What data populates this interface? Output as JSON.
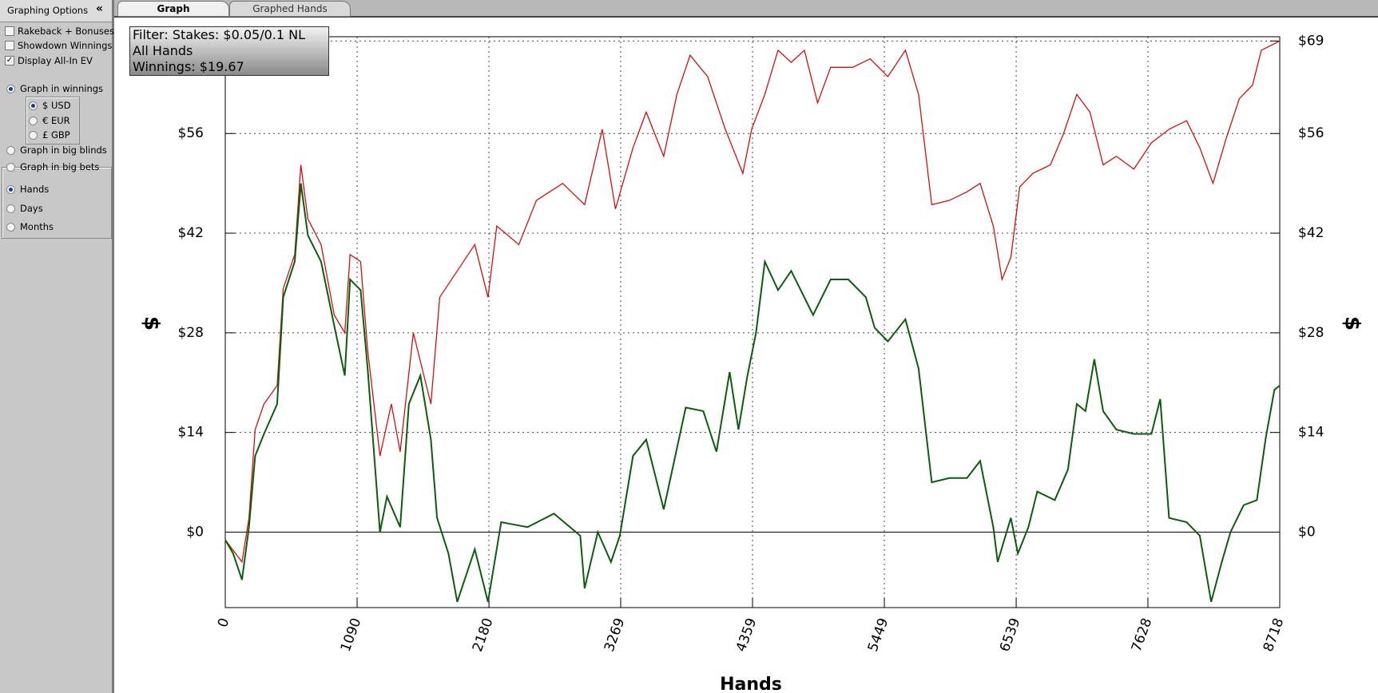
{
  "sidebar": {
    "title": "Graphing Options",
    "collapse": "«",
    "checkboxes": [
      {
        "label": "Rakeback + Bonuses",
        "checked": false
      },
      {
        "label": "Showdown Winnings",
        "checked": false
      },
      {
        "label": "Display All-In EV",
        "checked": true
      }
    ],
    "graph_modes": [
      {
        "label": "Graph in winnings",
        "checked": true
      },
      {
        "label": "Graph in big blinds",
        "checked": false
      },
      {
        "label": "Graph in big bets",
        "checked": false
      }
    ],
    "currencies": [
      {
        "label": "$ USD",
        "checked": true
      },
      {
        "label": "€ EUR",
        "checked": false
      },
      {
        "label": "£ GBP",
        "checked": false
      }
    ],
    "x_modes": [
      {
        "label": "Hands",
        "checked": true
      },
      {
        "label": "Days",
        "checked": false
      },
      {
        "label": "Months",
        "checked": false
      }
    ]
  },
  "tabs": [
    {
      "label": "Graph",
      "active": true
    },
    {
      "label": "Graphed Hands",
      "active": false
    }
  ],
  "filter_box": [
    "Filter: Stakes: $0.05/0.1 NL",
    "All Hands",
    "Winnings: $19.67"
  ],
  "chart_data": {
    "type": "line",
    "x_label": "Hands",
    "y_label": "$",
    "grid": true,
    "xlim": [
      0,
      8718
    ],
    "xticks": [
      0,
      1090,
      2180,
      3269,
      4359,
      5449,
      6539,
      7628,
      8718
    ],
    "ylim": [
      -10.6,
      69.6
    ],
    "yticks": [
      {
        "value": 0,
        "label": "$0"
      },
      {
        "value": 14,
        "label": "$14"
      },
      {
        "value": 28,
        "label": "$28"
      },
      {
        "value": 42,
        "label": "$42"
      },
      {
        "value": 56,
        "label": "$56"
      },
      {
        "value": 69,
        "label": "$69"
      }
    ],
    "series": [
      {
        "color": "#d01010",
        "x": [
          0,
          138,
          196,
          247,
          320,
          429,
          479,
          574,
          625,
          683,
          792,
          901,
          988,
          1032,
          1119,
          1177,
          1279,
          1373,
          1446,
          1555,
          1700,
          1773,
          1918,
          2063,
          2172,
          2245,
          2427,
          2572,
          2790,
          2971,
          3117,
          3226,
          3371,
          3480,
          3625,
          3734,
          3843,
          3988,
          4134,
          4279,
          4352,
          4461,
          4570,
          4679,
          4788,
          4897,
          5005,
          5187,
          5332,
          5478,
          5623,
          5732,
          5841,
          5986,
          6132,
          6241,
          6350,
          6422,
          6495,
          6568,
          6677,
          6822,
          6931,
          7040,
          7149,
          7258,
          7367,
          7512,
          7657,
          7803,
          7948,
          8057,
          8166,
          8275,
          8384,
          8493,
          8566,
          8718
        ],
        "values": [
          -1.1,
          -4.2,
          2,
          14.4,
          18,
          20.6,
          34.2,
          39,
          51.6,
          44,
          40.4,
          30.5,
          28,
          39,
          38,
          25.6,
          10.7,
          18,
          11.3,
          28,
          18,
          33,
          36.7,
          40.4,
          33,
          43,
          40.4,
          46.6,
          49,
          46,
          56.6,
          45.4,
          54,
          59,
          52.8,
          61.5,
          67,
          64,
          56.6,
          50.4,
          56.6,
          61.5,
          67.7,
          66,
          67.7,
          60.3,
          65.3,
          65.3,
          66.5,
          64,
          67.7,
          61.5,
          46,
          46.6,
          47.8,
          49,
          43,
          35.5,
          38.6,
          48.5,
          50.4,
          51.6,
          56,
          61.5,
          59,
          51.6,
          52.8,
          51,
          54.7,
          56.6,
          57.8,
          54,
          49,
          55.3,
          60.9,
          62.8,
          67.7,
          69
        ]
      },
      {
        "color": "#0c5c0c",
        "x": [
          0,
          65,
          138,
          196,
          247,
          320,
          429,
          479,
          574,
          625,
          683,
          792,
          901,
          988,
          1032,
          1119,
          1177,
          1279,
          1337,
          1446,
          1518,
          1613,
          1700,
          1751,
          1845,
          1918,
          2063,
          2172,
          2281,
          2499,
          2717,
          2935,
          2971,
          3080,
          3189,
          3262,
          3371,
          3480,
          3625,
          3807,
          3952,
          4061,
          4170,
          4243,
          4315,
          4388,
          4461,
          4570,
          4679,
          4860,
          5005,
          5151,
          5296,
          5369,
          5478,
          5623,
          5732,
          5841,
          5986,
          6132,
          6241,
          6350,
          6386,
          6495,
          6553,
          6640,
          6713,
          6858,
          6967,
          7040,
          7112,
          7185,
          7258,
          7367,
          7512,
          7657,
          7730,
          7803,
          7948,
          8057,
          8151,
          8239,
          8311,
          8420,
          8529,
          8602,
          8674,
          8718
        ],
        "values": [
          -1.1,
          -3,
          -6.7,
          0.7,
          10.7,
          13.8,
          18,
          33,
          38,
          49,
          41.7,
          38,
          29,
          22,
          35.5,
          34,
          23,
          0,
          5,
          0.7,
          18,
          22,
          13,
          2,
          -3,
          -9.8,
          -2.4,
          -9.8,
          1.4,
          0.7,
          2.6,
          -0.5,
          -7.9,
          0,
          -4.2,
          -0.5,
          10.7,
          13,
          3.2,
          17.5,
          17,
          11.3,
          22.5,
          14.4,
          21.8,
          28,
          38,
          34,
          36.7,
          30.5,
          35.5,
          35.5,
          33,
          28.7,
          26.8,
          29.9,
          23,
          7,
          7.6,
          7.6,
          10,
          0.7,
          -4.2,
          2,
          -3,
          0.7,
          5.7,
          4.5,
          8.8,
          18,
          17,
          24.3,
          17,
          14.4,
          13.8,
          13.8,
          18.7,
          2,
          1.4,
          -0.5,
          -9.8,
          -4.2,
          0,
          3.8,
          4.5,
          13.2,
          20,
          20.6
        ]
      }
    ]
  }
}
